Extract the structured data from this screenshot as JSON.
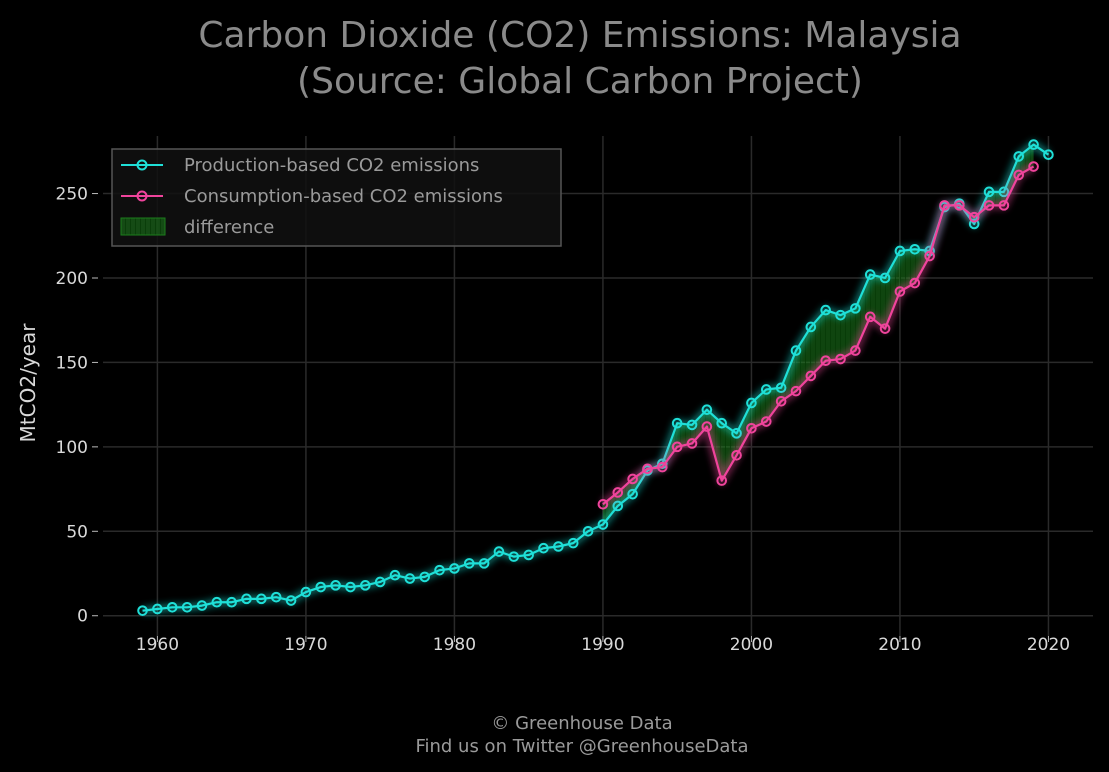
{
  "colors": {
    "background": "#000000",
    "production": "#1fe0d8",
    "consumption": "#f0449c",
    "difference": "#1c7d1c",
    "grid": "#2a2a2a",
    "text": "#8a8a8a"
  },
  "footer": {
    "line1": "© Greenhouse Data",
    "line2": "Find us on Twitter @GreenhouseData"
  },
  "chart_data": {
    "type": "line",
    "title": "Carbon Dioxide (CO2) Emissions: Malaysia",
    "subtitle": "(Source: Global Carbon Project)",
    "xlabel": "",
    "ylabel": "MtCO2/year",
    "xlim": [
      1956,
      2023
    ],
    "ylim": [
      -12,
      290
    ],
    "xticks": [
      1960,
      1970,
      1980,
      1990,
      2000,
      2010,
      2020
    ],
    "yticks": [
      0,
      50,
      100,
      150,
      200,
      250
    ],
    "grid": true,
    "legend_position": "top-left",
    "series": [
      {
        "name": "Production-based CO2 emissions",
        "x": [
          1959,
          1960,
          1961,
          1962,
          1963,
          1964,
          1965,
          1966,
          1967,
          1968,
          1969,
          1970,
          1971,
          1972,
          1973,
          1974,
          1975,
          1976,
          1977,
          1978,
          1979,
          1980,
          1981,
          1982,
          1983,
          1984,
          1985,
          1986,
          1987,
          1988,
          1989,
          1990,
          1991,
          1992,
          1993,
          1994,
          1995,
          1996,
          1997,
          1998,
          1999,
          2000,
          2001,
          2002,
          2003,
          2004,
          2005,
          2006,
          2007,
          2008,
          2009,
          2010,
          2011,
          2012,
          2013,
          2014,
          2015,
          2016,
          2017,
          2018,
          2019,
          2020
        ],
        "values": [
          3,
          4,
          5,
          5,
          6,
          8,
          8,
          10,
          10,
          11,
          9,
          14,
          17,
          18,
          17,
          18,
          20,
          24,
          22,
          23,
          27,
          28,
          31,
          31,
          38,
          35,
          36,
          40,
          41,
          43,
          50,
          54,
          65,
          72,
          86,
          90,
          114,
          113,
          122,
          114,
          108,
          126,
          134,
          135,
          157,
          171,
          181,
          178,
          182,
          202,
          200,
          216,
          217,
          216,
          242,
          244,
          232,
          251,
          251,
          272,
          279,
          273
        ]
      },
      {
        "name": "Consumption-based CO2 emissions",
        "x": [
          1990,
          1991,
          1992,
          1993,
          1994,
          1995,
          1996,
          1997,
          1998,
          1999,
          2000,
          2001,
          2002,
          2003,
          2004,
          2005,
          2006,
          2007,
          2008,
          2009,
          2010,
          2011,
          2012,
          2013,
          2014,
          2015,
          2016,
          2017,
          2018,
          2019
        ],
        "values": [
          66,
          73,
          81,
          87,
          88,
          100,
          102,
          112,
          80,
          95,
          111,
          115,
          127,
          133,
          142,
          151,
          152,
          157,
          177,
          170,
          192,
          197,
          213,
          243,
          243,
          236,
          243,
          243,
          261,
          266
        ]
      }
    ],
    "fill_between": {
      "name": "difference",
      "between": [
        "Production-based CO2 emissions",
        "Consumption-based CO2 emissions"
      ]
    }
  }
}
